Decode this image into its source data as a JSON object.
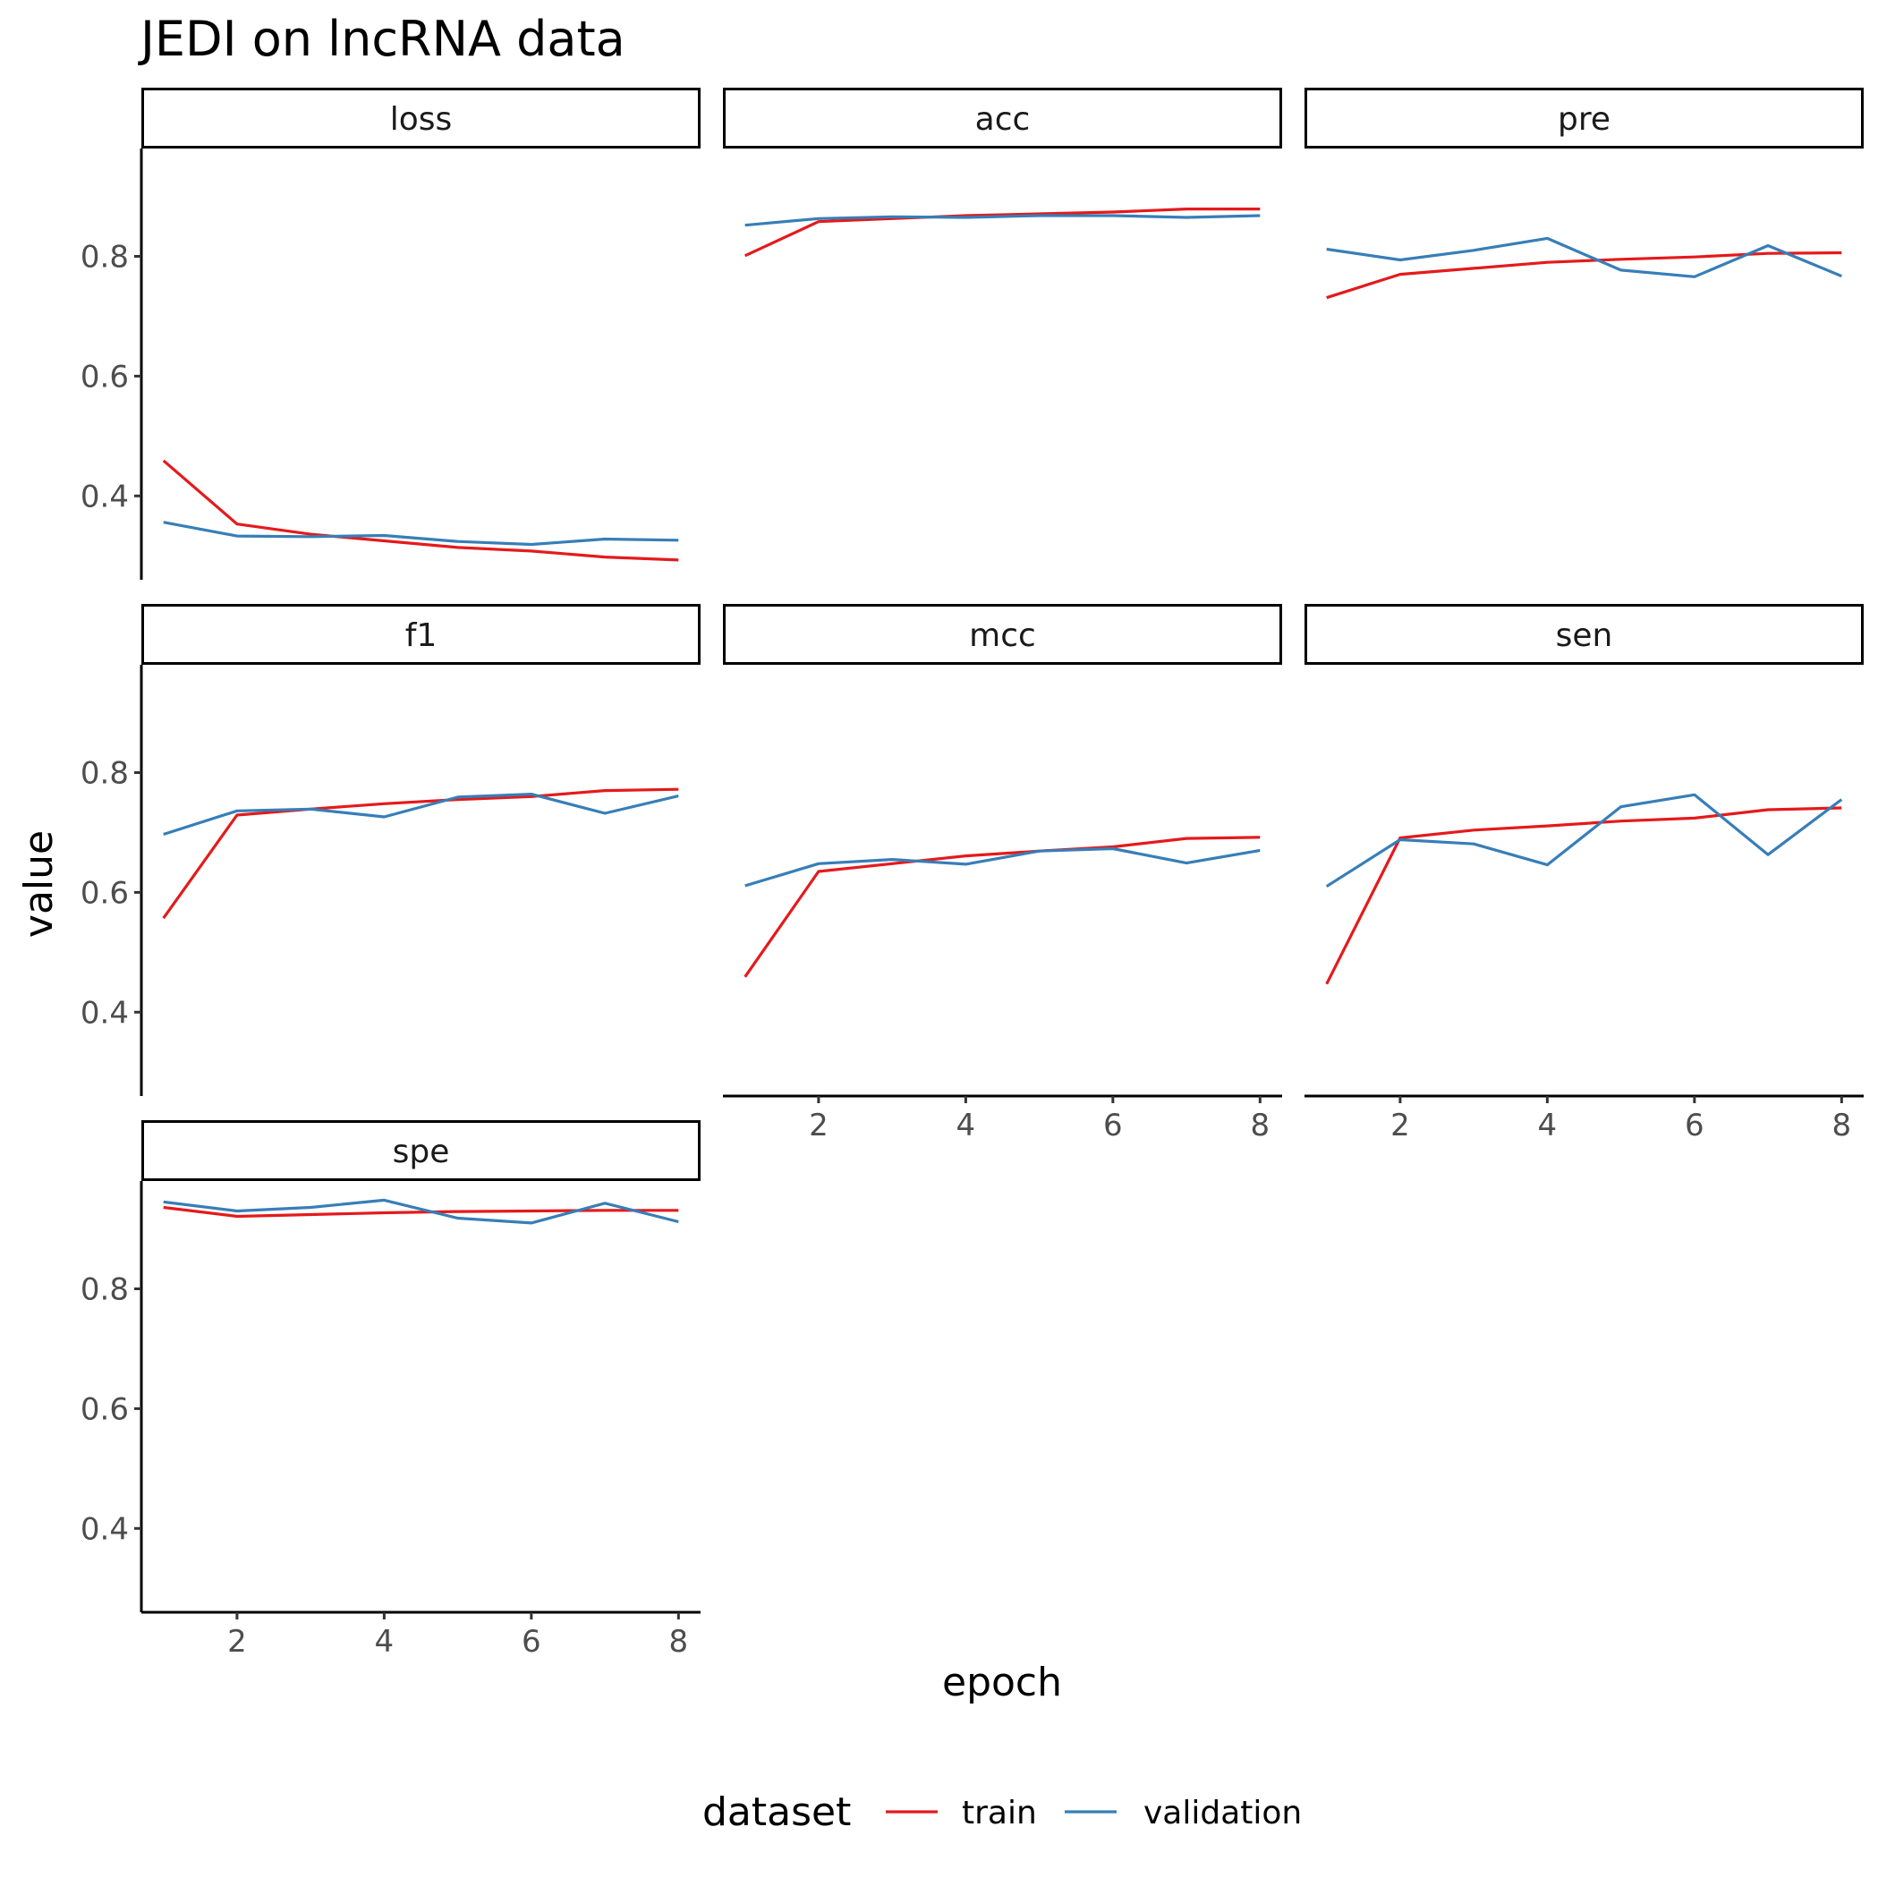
{
  "chart_data": {
    "type": "line",
    "title": "JEDI on lncRNA data",
    "xlabel": "epoch",
    "ylabel": "value",
    "xlim": [
      0.7,
      8.3
    ],
    "ylim": [
      0.26,
      0.98
    ],
    "x_ticks": [
      2,
      4,
      6,
      8
    ],
    "y_ticks": [
      0.4,
      0.6,
      0.8
    ],
    "x": [
      1,
      2,
      3,
      4,
      5,
      6,
      7,
      8
    ],
    "grid": false,
    "legend": {
      "title": "dataset",
      "position": "bottom",
      "entries": [
        {
          "name": "train",
          "color": "#e41a1c"
        },
        {
          "name": "validation",
          "color": "#377eb8"
        }
      ]
    },
    "panels": [
      {
        "name": "loss",
        "series": [
          {
            "name": "train",
            "values": [
              0.459,
              0.353,
              0.336,
              0.325,
              0.314,
              0.308,
              0.298,
              0.293
            ]
          },
          {
            "name": "validation",
            "values": [
              0.356,
              0.333,
              0.332,
              0.334,
              0.324,
              0.319,
              0.328,
              0.326
            ]
          }
        ]
      },
      {
        "name": "acc",
        "series": [
          {
            "name": "train",
            "values": [
              0.801,
              0.858,
              0.863,
              0.868,
              0.871,
              0.874,
              0.879,
              0.879
            ]
          },
          {
            "name": "validation",
            "values": [
              0.852,
              0.863,
              0.866,
              0.865,
              0.868,
              0.868,
              0.865,
              0.868
            ]
          }
        ]
      },
      {
        "name": "pre",
        "series": [
          {
            "name": "train",
            "values": [
              0.731,
              0.77,
              0.78,
              0.79,
              0.795,
              0.799,
              0.805,
              0.806
            ]
          },
          {
            "name": "validation",
            "values": [
              0.812,
              0.794,
              0.81,
              0.83,
              0.777,
              0.766,
              0.818,
              0.767
            ]
          }
        ]
      },
      {
        "name": "f1",
        "series": [
          {
            "name": "train",
            "values": [
              0.557,
              0.729,
              0.739,
              0.748,
              0.755,
              0.76,
              0.77,
              0.772
            ]
          },
          {
            "name": "validation",
            "values": [
              0.697,
              0.736,
              0.739,
              0.726,
              0.759,
              0.764,
              0.732,
              0.761
            ]
          }
        ]
      },
      {
        "name": "mcc",
        "series": [
          {
            "name": "train",
            "values": [
              0.459,
              0.635,
              0.648,
              0.661,
              0.669,
              0.676,
              0.69,
              0.692
            ]
          },
          {
            "name": "validation",
            "values": [
              0.611,
              0.648,
              0.655,
              0.647,
              0.669,
              0.673,
              0.649,
              0.67
            ]
          }
        ]
      },
      {
        "name": "sen",
        "series": [
          {
            "name": "train",
            "values": [
              0.447,
              0.691,
              0.704,
              0.711,
              0.719,
              0.724,
              0.738,
              0.741
            ]
          },
          {
            "name": "validation",
            "values": [
              0.61,
              0.688,
              0.681,
              0.646,
              0.743,
              0.763,
              0.663,
              0.755
            ]
          }
        ]
      },
      {
        "name": "spe",
        "series": [
          {
            "name": "train",
            "values": [
              0.936,
              0.921,
              0.924,
              0.927,
              0.929,
              0.93,
              0.931,
              0.931
            ]
          },
          {
            "name": "validation",
            "values": [
              0.945,
              0.93,
              0.936,
              0.948,
              0.918,
              0.91,
              0.943,
              0.912
            ]
          }
        ]
      }
    ]
  }
}
